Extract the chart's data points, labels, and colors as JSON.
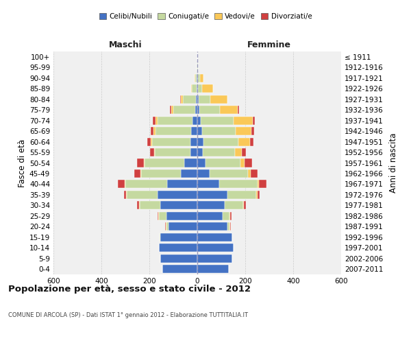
{
  "age_groups": [
    "0-4",
    "5-9",
    "10-14",
    "15-19",
    "20-24",
    "25-29",
    "30-34",
    "35-39",
    "40-44",
    "45-49",
    "50-54",
    "55-59",
    "60-64",
    "65-69",
    "70-74",
    "75-79",
    "80-84",
    "85-89",
    "90-94",
    "95-99",
    "100+"
  ],
  "birth_years": [
    "2007-2011",
    "2002-2006",
    "1997-2001",
    "1992-1996",
    "1987-1991",
    "1982-1986",
    "1977-1981",
    "1972-1976",
    "1967-1971",
    "1962-1966",
    "1957-1961",
    "1952-1956",
    "1947-1951",
    "1942-1946",
    "1937-1941",
    "1932-1936",
    "1927-1931",
    "1922-1926",
    "1917-1921",
    "1912-1916",
    "≤ 1911"
  ],
  "male": {
    "celibi": [
      145,
      155,
      160,
      155,
      120,
      130,
      155,
      165,
      125,
      70,
      55,
      28,
      30,
      25,
      20,
      10,
      5,
      2,
      2,
      0,
      0
    ],
    "coniugati": [
      0,
      0,
      0,
      2,
      10,
      30,
      85,
      130,
      175,
      165,
      165,
      150,
      160,
      150,
      145,
      90,
      55,
      20,
      8,
      2,
      0
    ],
    "vedovi": [
      0,
      0,
      0,
      0,
      2,
      2,
      2,
      2,
      2,
      2,
      2,
      3,
      5,
      8,
      10,
      8,
      10,
      5,
      2,
      0,
      0
    ],
    "divorziati": [
      0,
      0,
      0,
      0,
      2,
      5,
      10,
      10,
      30,
      25,
      30,
      15,
      15,
      12,
      10,
      5,
      2,
      0,
      0,
      0,
      0
    ]
  },
  "female": {
    "nubili": [
      130,
      145,
      150,
      145,
      125,
      105,
      115,
      125,
      90,
      50,
      35,
      22,
      25,
      20,
      15,
      8,
      5,
      2,
      2,
      0,
      0
    ],
    "coniugate": [
      0,
      0,
      0,
      2,
      10,
      30,
      75,
      120,
      160,
      160,
      145,
      135,
      145,
      140,
      135,
      85,
      50,
      18,
      8,
      2,
      0
    ],
    "vedove": [
      0,
      0,
      0,
      0,
      2,
      2,
      3,
      5,
      8,
      12,
      18,
      30,
      50,
      65,
      80,
      75,
      70,
      45,
      15,
      2,
      0
    ],
    "divorziate": [
      0,
      0,
      0,
      0,
      2,
      5,
      10,
      10,
      30,
      30,
      30,
      15,
      15,
      12,
      10,
      5,
      2,
      0,
      0,
      0,
      0
    ]
  },
  "colors": {
    "celibi": "#4472C4",
    "coniugati": "#C5D9A0",
    "vedovi": "#FAC858",
    "divorziati": "#D04040"
  },
  "xlim": 600,
  "title": "Popolazione per età, sesso e stato civile - 2012",
  "subtitle": "COMUNE DI ARCOLA (SP) - Dati ISTAT 1° gennaio 2012 - Elaborazione TUTTITALIA.IT",
  "xlabel_left": "Maschi",
  "xlabel_right": "Femmine",
  "ylabel_left": "Fasce di età",
  "ylabel_right": "Anni di nascita",
  "legend_labels": [
    "Celibi/Nubili",
    "Coniugati/e",
    "Vedovi/e",
    "Divorziati/e"
  ],
  "bg_color": "#ffffff",
  "plot_bg": "#f0f0f0",
  "grid_color": "#cccccc"
}
